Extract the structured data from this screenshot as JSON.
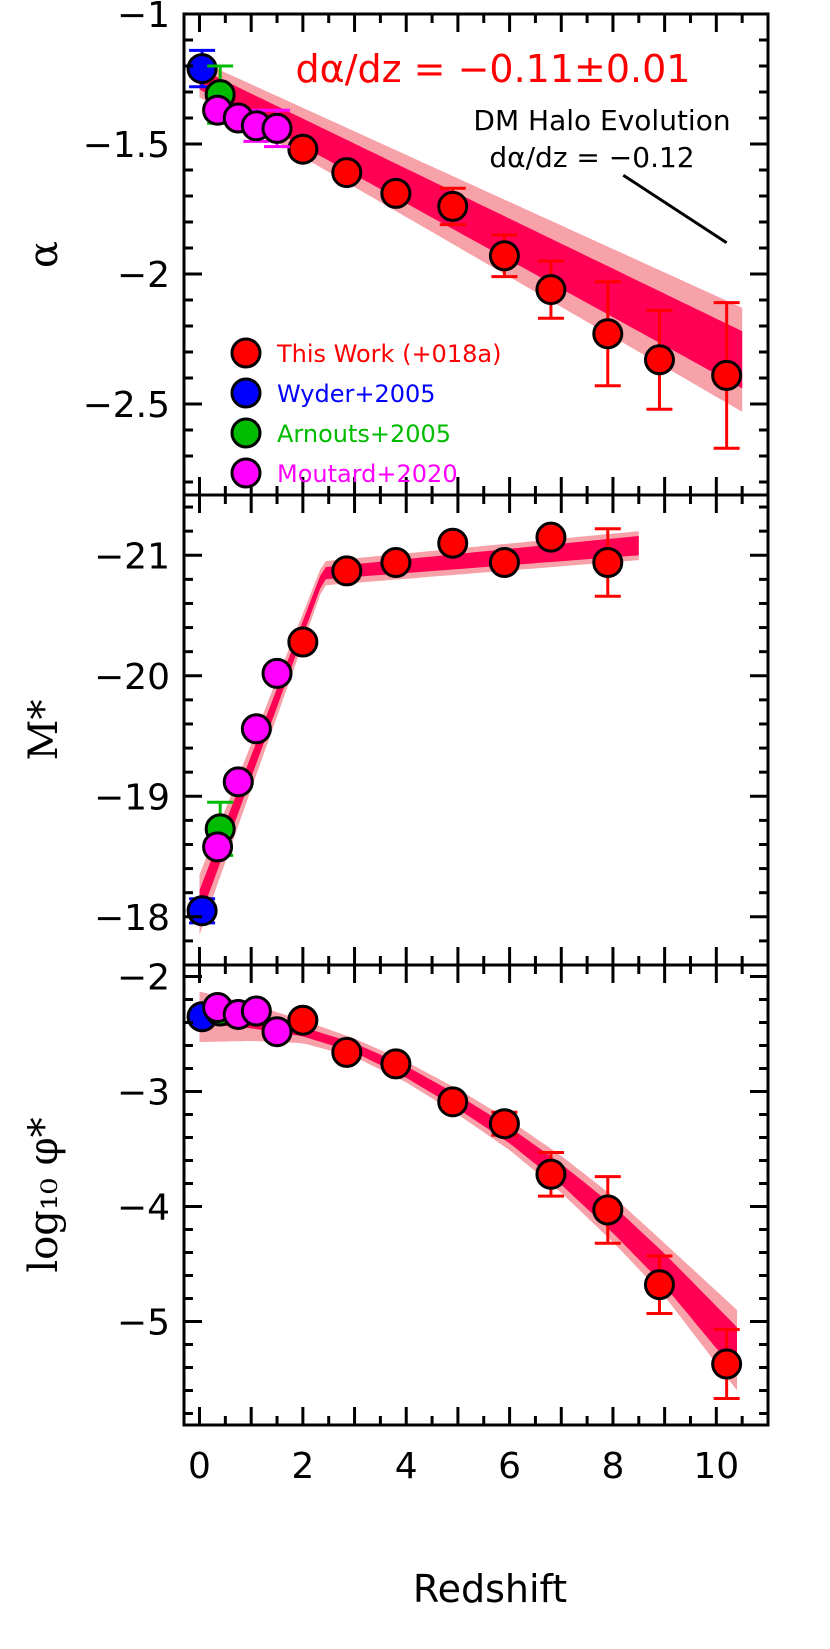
{
  "chart_data": {
    "type": "scatter",
    "xlabel": "Redshift",
    "x_ticks": [
      "0",
      "2",
      "4",
      "6",
      "8",
      "10"
    ],
    "xlim": [
      -0.3,
      11.0
    ],
    "panels": [
      {
        "ylabel": "α",
        "ylim": [
          -1.0,
          -2.85
        ],
        "y_ticks": [
          -1,
          -1.5,
          -2,
          -2.5
        ],
        "y_tick_labels": [
          "−1",
          "−1.5",
          "−2",
          "−2.5"
        ],
        "model_band": {
          "x": [
            0.0,
            10.5
          ],
          "y_center": [
            -1.25,
            -2.33
          ],
          "inner_halfwidth": [
            0.04,
            0.11
          ],
          "outer_halfwidth": [
            0.07,
            0.2
          ]
        },
        "annotations": {
          "slope_fit": "dα/dz = −0.11±0.01",
          "halo_title": "DM Halo Evolution",
          "halo_slope": "dα/dz = −0.12",
          "halo_line": {
            "x": [
              8.2,
              10.2
            ],
            "y": [
              -1.62,
              -1.88
            ]
          }
        },
        "series": [
          {
            "name": "This Work (+018a)",
            "color": "#ff0000",
            "points": [
              {
                "x": 2.0,
                "y": -1.52
              },
              {
                "x": 2.85,
                "y": -1.61
              },
              {
                "x": 3.8,
                "y": -1.69
              },
              {
                "x": 4.9,
                "y": -1.74,
                "err": 0.07
              },
              {
                "x": 5.9,
                "y": -1.93,
                "err": 0.08
              },
              {
                "x": 6.8,
                "y": -2.06,
                "err": 0.11
              },
              {
                "x": 7.9,
                "y": -2.23,
                "err": 0.2
              },
              {
                "x": 8.9,
                "y": -2.33,
                "err": 0.19
              },
              {
                "x": 10.2,
                "y": -2.39,
                "err": 0.28
              }
            ]
          },
          {
            "name": "Wyder+2005",
            "color": "#0000ff",
            "points": [
              {
                "x": 0.05,
                "y": -1.21,
                "err": 0.07
              }
            ]
          },
          {
            "name": "Arnouts+2005",
            "color": "#00bb00",
            "points": [
              {
                "x": 0.4,
                "y": -1.31,
                "err": 0.11
              }
            ]
          },
          {
            "name": "Moutard+2020",
            "color": "#ff00ff",
            "points": [
              {
                "x": 0.35,
                "y": -1.37
              },
              {
                "x": 0.75,
                "y": -1.4
              },
              {
                "x": 1.1,
                "y": -1.43,
                "err": 0.06
              },
              {
                "x": 1.5,
                "y": -1.44,
                "err": 0.07
              }
            ]
          }
        ]
      },
      {
        "ylabel": "M*",
        "ylim": [
          -21.5,
          -17.6
        ],
        "y_ticks": [
          -21,
          -20,
          -19,
          -18
        ],
        "y_tick_labels": [
          "−21",
          "−20",
          "−19",
          "−18"
        ],
        "model_band": {
          "x": [
            0.0,
            2.4,
            8.5
          ],
          "y_center": [
            -18.1,
            -20.85,
            -21.08
          ],
          "inner_halfwidth": [
            0.12,
            0.05,
            0.08
          ],
          "outer_halfwidth": [
            0.25,
            0.1,
            0.12
          ]
        },
        "series": [
          {
            "name": "This Work (+018a)",
            "color": "#ff0000",
            "points": [
              {
                "x": 2.0,
                "y": -20.28
              },
              {
                "x": 2.85,
                "y": -20.87
              },
              {
                "x": 3.8,
                "y": -20.94
              },
              {
                "x": 4.9,
                "y": -21.1
              },
              {
                "x": 5.9,
                "y": -20.94
              },
              {
                "x": 6.8,
                "y": -21.15
              },
              {
                "x": 7.9,
                "y": -20.94,
                "err": 0.28
              }
            ]
          },
          {
            "name": "Wyder+2005",
            "color": "#0000ff",
            "points": [
              {
                "x": 0.05,
                "y": -18.05,
                "err": 0.1
              }
            ]
          },
          {
            "name": "Arnouts+2005",
            "color": "#00bb00",
            "points": [
              {
                "x": 0.4,
                "y": -18.73,
                "err": 0.22
              }
            ]
          },
          {
            "name": "Moutard+2020",
            "color": "#ff00ff",
            "points": [
              {
                "x": 0.35,
                "y": -18.58
              },
              {
                "x": 0.75,
                "y": -19.12
              },
              {
                "x": 1.1,
                "y": -19.56
              },
              {
                "x": 1.5,
                "y": -20.02
              }
            ]
          }
        ]
      },
      {
        "ylabel": "log₁₀ φ*",
        "ylim": [
          -1.9,
          -5.9
        ],
        "y_ticks": [
          -2,
          -3,
          -4,
          -5
        ],
        "y_tick_labels": [
          "−2",
          "−3",
          "−4",
          "−5"
        ],
        "model_band": {
          "x": [
            0.0,
            1.0,
            2.0,
            3.0,
            4.0,
            5.0,
            6.0,
            7.0,
            8.0,
            9.0,
            10.4
          ],
          "y_center": [
            -2.35,
            -2.4,
            -2.48,
            -2.62,
            -2.83,
            -3.09,
            -3.38,
            -3.72,
            -4.11,
            -4.55,
            -5.25
          ],
          "inner_halfwidth": [
            0.06,
            0.05,
            0.04,
            0.04,
            0.05,
            0.06,
            0.07,
            0.09,
            0.12,
            0.14,
            0.2
          ],
          "outer_halfwidth": [
            0.22,
            0.16,
            0.1,
            0.08,
            0.09,
            0.11,
            0.13,
            0.16,
            0.2,
            0.23,
            0.35
          ]
        },
        "series": [
          {
            "name": "This Work (+018a)",
            "color": "#ff0000",
            "points": [
              {
                "x": 2.0,
                "y": -2.38
              },
              {
                "x": 2.85,
                "y": -2.66
              },
              {
                "x": 3.8,
                "y": -2.76
              },
              {
                "x": 4.9,
                "y": -3.09
              },
              {
                "x": 5.9,
                "y": -3.28,
                "err": 0.1
              },
              {
                "x": 6.8,
                "y": -3.72,
                "err": 0.19
              },
              {
                "x": 7.9,
                "y": -4.03,
                "err": 0.29
              },
              {
                "x": 8.9,
                "y": -4.68,
                "err": 0.25
              },
              {
                "x": 10.2,
                "y": -5.37,
                "err": 0.3
              }
            ]
          },
          {
            "name": "Wyder+2005",
            "color": "#0000ff",
            "points": [
              {
                "x": 0.05,
                "y": -2.35
              }
            ]
          },
          {
            "name": "Arnouts+2005",
            "color": "#00bb00",
            "points": [
              {
                "x": 0.4,
                "y": -2.3
              }
            ]
          },
          {
            "name": "Moutard+2020",
            "color": "#ff00ff",
            "points": [
              {
                "x": 0.35,
                "y": -2.27
              },
              {
                "x": 0.75,
                "y": -2.33
              },
              {
                "x": 1.1,
                "y": -2.3
              },
              {
                "x": 1.5,
                "y": -2.48
              }
            ]
          }
        ]
      }
    ],
    "legend": {
      "placement": "lower-left of top panel",
      "entries": [
        {
          "label": "This Work (+018a)",
          "color": "#ff0000"
        },
        {
          "label": "Wyder+2005",
          "color": "#0000ff"
        },
        {
          "label": "Arnouts+2005",
          "color": "#00bb00"
        },
        {
          "label": "Moutard+2020",
          "color": "#ff00ff"
        }
      ]
    },
    "colors": {
      "band_inner": "#ff0055",
      "band_outer": "#f7a1a8",
      "marker_edge": "#000000"
    }
  }
}
